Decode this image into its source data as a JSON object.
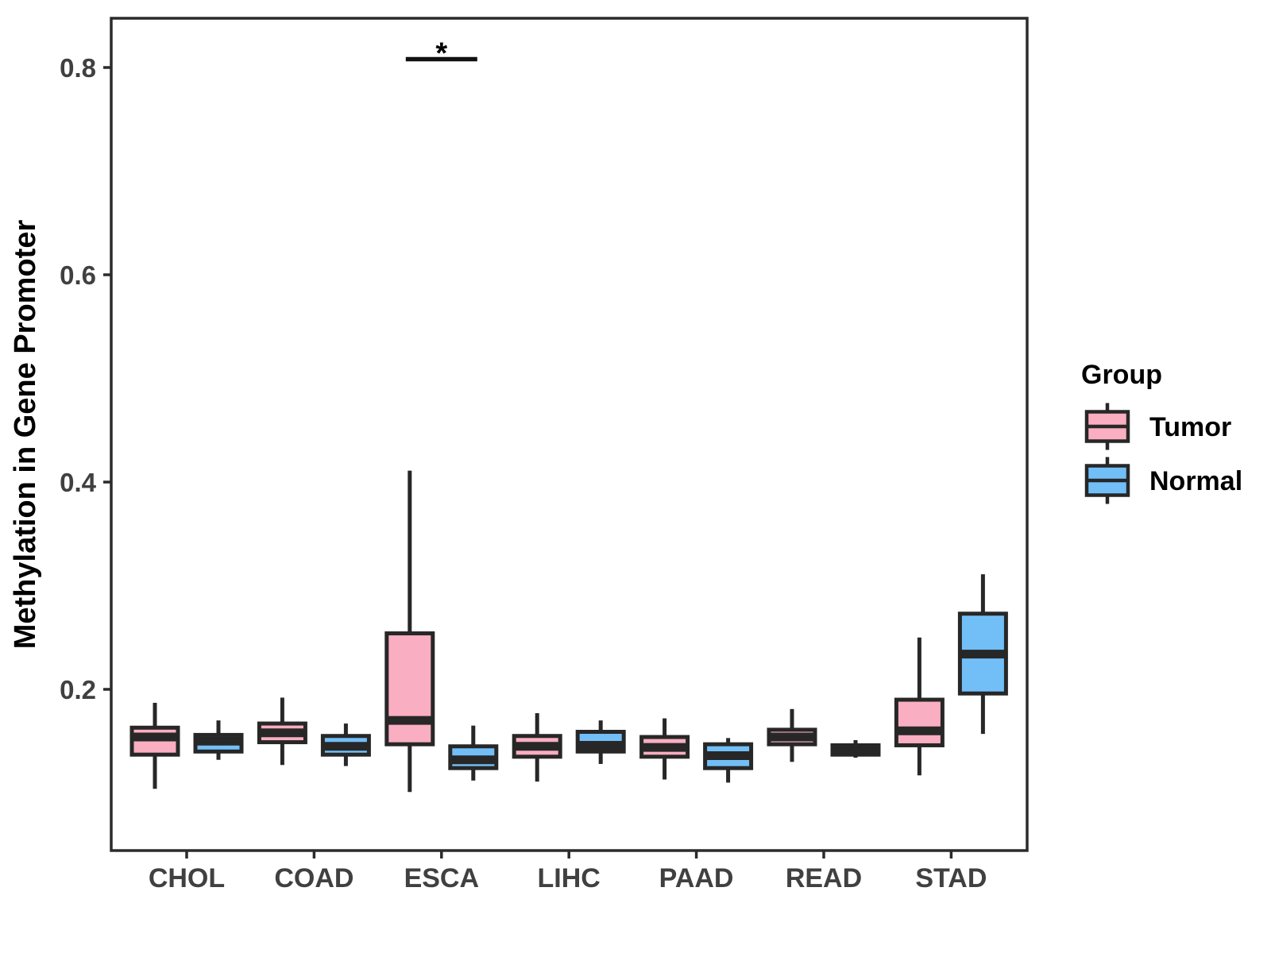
{
  "chart_data": {
    "type": "boxplot",
    "title": "",
    "ylabel": "Methylation in Gene Promoter",
    "xlabel": "",
    "categories": [
      "CHOL",
      "COAD",
      "ESCA",
      "LIHC",
      "PAAD",
      "READ",
      "STAD"
    ],
    "y_ticks": [
      {
        "value": 0.2,
        "label": "0.2"
      },
      {
        "value": 0.4,
        "label": "0.4"
      },
      {
        "value": 0.6,
        "label": "0.6"
      },
      {
        "value": 0.8,
        "label": "0.8"
      }
    ],
    "ylim": [
      0.04,
      0.85
    ],
    "grid": false,
    "legend": {
      "title": "Group",
      "position": "right",
      "entries": [
        "Tumor",
        "Normal"
      ]
    },
    "colors": {
      "tumor_fill": "#FAAEC1",
      "normal_fill": "#72BFF8",
      "box_stroke": "#272727",
      "axis_line": "#2B2B2B",
      "axis_text": "#404040",
      "annotation": "#111111"
    },
    "series": [
      {
        "name": "Tumor",
        "color": "#FAAEC1",
        "boxes": [
          {
            "category": "CHOL",
            "min": 0.104,
            "q1": 0.137,
            "median": 0.154,
            "q3": 0.163,
            "max": 0.187
          },
          {
            "category": "COAD",
            "min": 0.127,
            "q1": 0.149,
            "median": 0.158,
            "q3": 0.167,
            "max": 0.192
          },
          {
            "category": "ESCA",
            "min": 0.101,
            "q1": 0.147,
            "median": 0.17,
            "q3": 0.254,
            "max": 0.411
          },
          {
            "category": "LIHC",
            "min": 0.111,
            "q1": 0.135,
            "median": 0.145,
            "q3": 0.155,
            "max": 0.177
          },
          {
            "category": "PAAD",
            "min": 0.113,
            "q1": 0.135,
            "median": 0.144,
            "q3": 0.154,
            "max": 0.172
          },
          {
            "category": "READ",
            "min": 0.13,
            "q1": 0.147,
            "median": 0.154,
            "q3": 0.161,
            "max": 0.181
          },
          {
            "category": "STAD",
            "min": 0.117,
            "q1": 0.146,
            "median": 0.16,
            "q3": 0.19,
            "max": 0.25
          }
        ]
      },
      {
        "name": "Normal",
        "color": "#72BFF8",
        "boxes": [
          {
            "category": "CHOL",
            "min": 0.132,
            "q1": 0.14,
            "median": 0.15,
            "q3": 0.156,
            "max": 0.17
          },
          {
            "category": "COAD",
            "min": 0.126,
            "q1": 0.137,
            "median": 0.145,
            "q3": 0.155,
            "max": 0.167
          },
          {
            "category": "ESCA",
            "min": 0.112,
            "q1": 0.124,
            "median": 0.132,
            "q3": 0.145,
            "max": 0.165
          },
          {
            "category": "LIHC",
            "min": 0.128,
            "q1": 0.14,
            "median": 0.146,
            "q3": 0.159,
            "max": 0.17
          },
          {
            "category": "PAAD",
            "min": 0.11,
            "q1": 0.124,
            "median": 0.136,
            "q3": 0.147,
            "max": 0.153
          },
          {
            "category": "READ",
            "min": 0.134,
            "q1": 0.137,
            "median": 0.141,
            "q3": 0.146,
            "max": 0.151
          },
          {
            "category": "STAD",
            "min": 0.157,
            "q1": 0.196,
            "median": 0.234,
            "q3": 0.273,
            "max": 0.311
          }
        ]
      }
    ],
    "annotations": [
      {
        "type": "significance-bar",
        "label": "*",
        "category": "ESCA",
        "y": 0.808
      }
    ]
  }
}
